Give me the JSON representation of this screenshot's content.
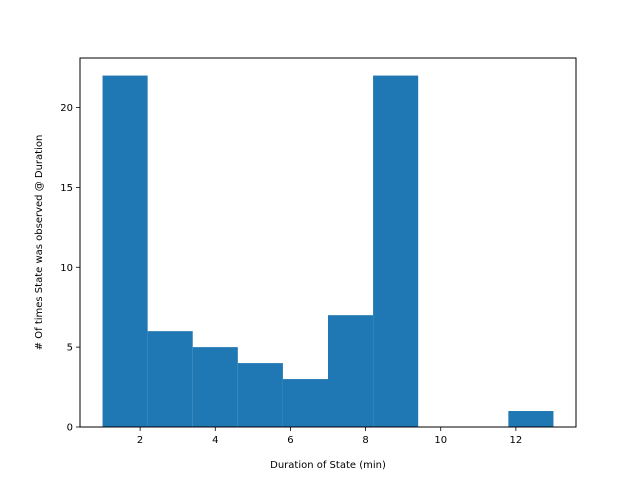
{
  "chart_data": {
    "type": "bar",
    "subtype": "histogram",
    "bins": [
      {
        "x0": 1.0,
        "x1": 2.2,
        "count": 22
      },
      {
        "x0": 2.2,
        "x1": 3.4,
        "count": 6
      },
      {
        "x0": 3.4,
        "x1": 4.6,
        "count": 5
      },
      {
        "x0": 4.6,
        "x1": 5.8,
        "count": 4
      },
      {
        "x0": 5.8,
        "x1": 7.0,
        "count": 3
      },
      {
        "x0": 7.0,
        "x1": 8.2,
        "count": 7
      },
      {
        "x0": 8.2,
        "x1": 9.4,
        "count": 22
      },
      {
        "x0": 9.4,
        "x1": 10.6,
        "count": 0
      },
      {
        "x0": 10.6,
        "x1": 11.8,
        "count": 0
      },
      {
        "x0": 11.8,
        "x1": 13.0,
        "count": 1
      }
    ],
    "xlabel": "Duration of State (min)",
    "ylabel": "# Of times State was observed @ Duration",
    "xlim": [
      0.4,
      13.6
    ],
    "ylim": [
      0,
      23.1
    ],
    "xticks": [
      2,
      4,
      6,
      8,
      10,
      12
    ],
    "yticks": [
      0,
      5,
      10,
      15,
      20
    ],
    "bar_color": "#1f77b4",
    "grid": false
  }
}
